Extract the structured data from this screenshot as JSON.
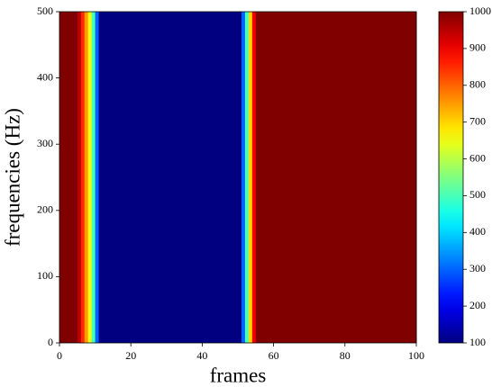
{
  "chart_data": {
    "type": "heatmap",
    "colormap": "jet",
    "xlabel": "frames",
    "ylabel": "frequencies (Hz)",
    "x": [
      0,
      1,
      2,
      3,
      4,
      5,
      6,
      7,
      8,
      9,
      10,
      11,
      12,
      13,
      14,
      15,
      16,
      17,
      18,
      19,
      20,
      21,
      22,
      23,
      24,
      25,
      26,
      27,
      28,
      29,
      30,
      31,
      32,
      33,
      34,
      35,
      36,
      37,
      38,
      39,
      40,
      41,
      42,
      43,
      44,
      45,
      46,
      47,
      48,
      49,
      50,
      51,
      52,
      53,
      54,
      55,
      56,
      57,
      58,
      59,
      60,
      61,
      62,
      63,
      64,
      65,
      66,
      67,
      68,
      69,
      70,
      71,
      72,
      73,
      74,
      75,
      76,
      77,
      78,
      79,
      80,
      81,
      82,
      83,
      84,
      85,
      86,
      87,
      88,
      89,
      90,
      91,
      92,
      93,
      94,
      95,
      96,
      97,
      98,
      99
    ],
    "values": [
      1000,
      1000,
      1000,
      1000,
      1000,
      950,
      850,
      750,
      650,
      500,
      300,
      100,
      100,
      100,
      100,
      100,
      100,
      100,
      100,
      100,
      100,
      100,
      100,
      100,
      100,
      100,
      100,
      100,
      100,
      100,
      100,
      100,
      100,
      100,
      100,
      100,
      100,
      100,
      100,
      100,
      100,
      100,
      100,
      100,
      100,
      100,
      100,
      100,
      100,
      100,
      100,
      300,
      500,
      700,
      900,
      1000,
      1000,
      1000,
      1000,
      1000,
      1000,
      1000,
      1000,
      1000,
      1000,
      1000,
      1000,
      1000,
      1000,
      1000,
      1000,
      1000,
      1000,
      1000,
      1000,
      1000,
      1000,
      1000,
      1000,
      1000,
      1000,
      1000,
      1000,
      1000,
      1000,
      1000,
      1000,
      1000,
      1000,
      1000,
      1000,
      1000,
      1000,
      1000,
      1000,
      1000,
      1000,
      1000,
      1000,
      1000
    ],
    "xlim": [
      0,
      100
    ],
    "xticks": [
      0,
      20,
      40,
      60,
      80,
      100
    ],
    "ylim": [
      0,
      500
    ],
    "yticks": [
      0,
      100,
      200,
      300,
      400,
      500
    ],
    "colorbar": {
      "lim": [
        100,
        1000
      ],
      "ticks": [
        100,
        200,
        300,
        400,
        500,
        600,
        700,
        800,
        900,
        1000
      ]
    }
  }
}
